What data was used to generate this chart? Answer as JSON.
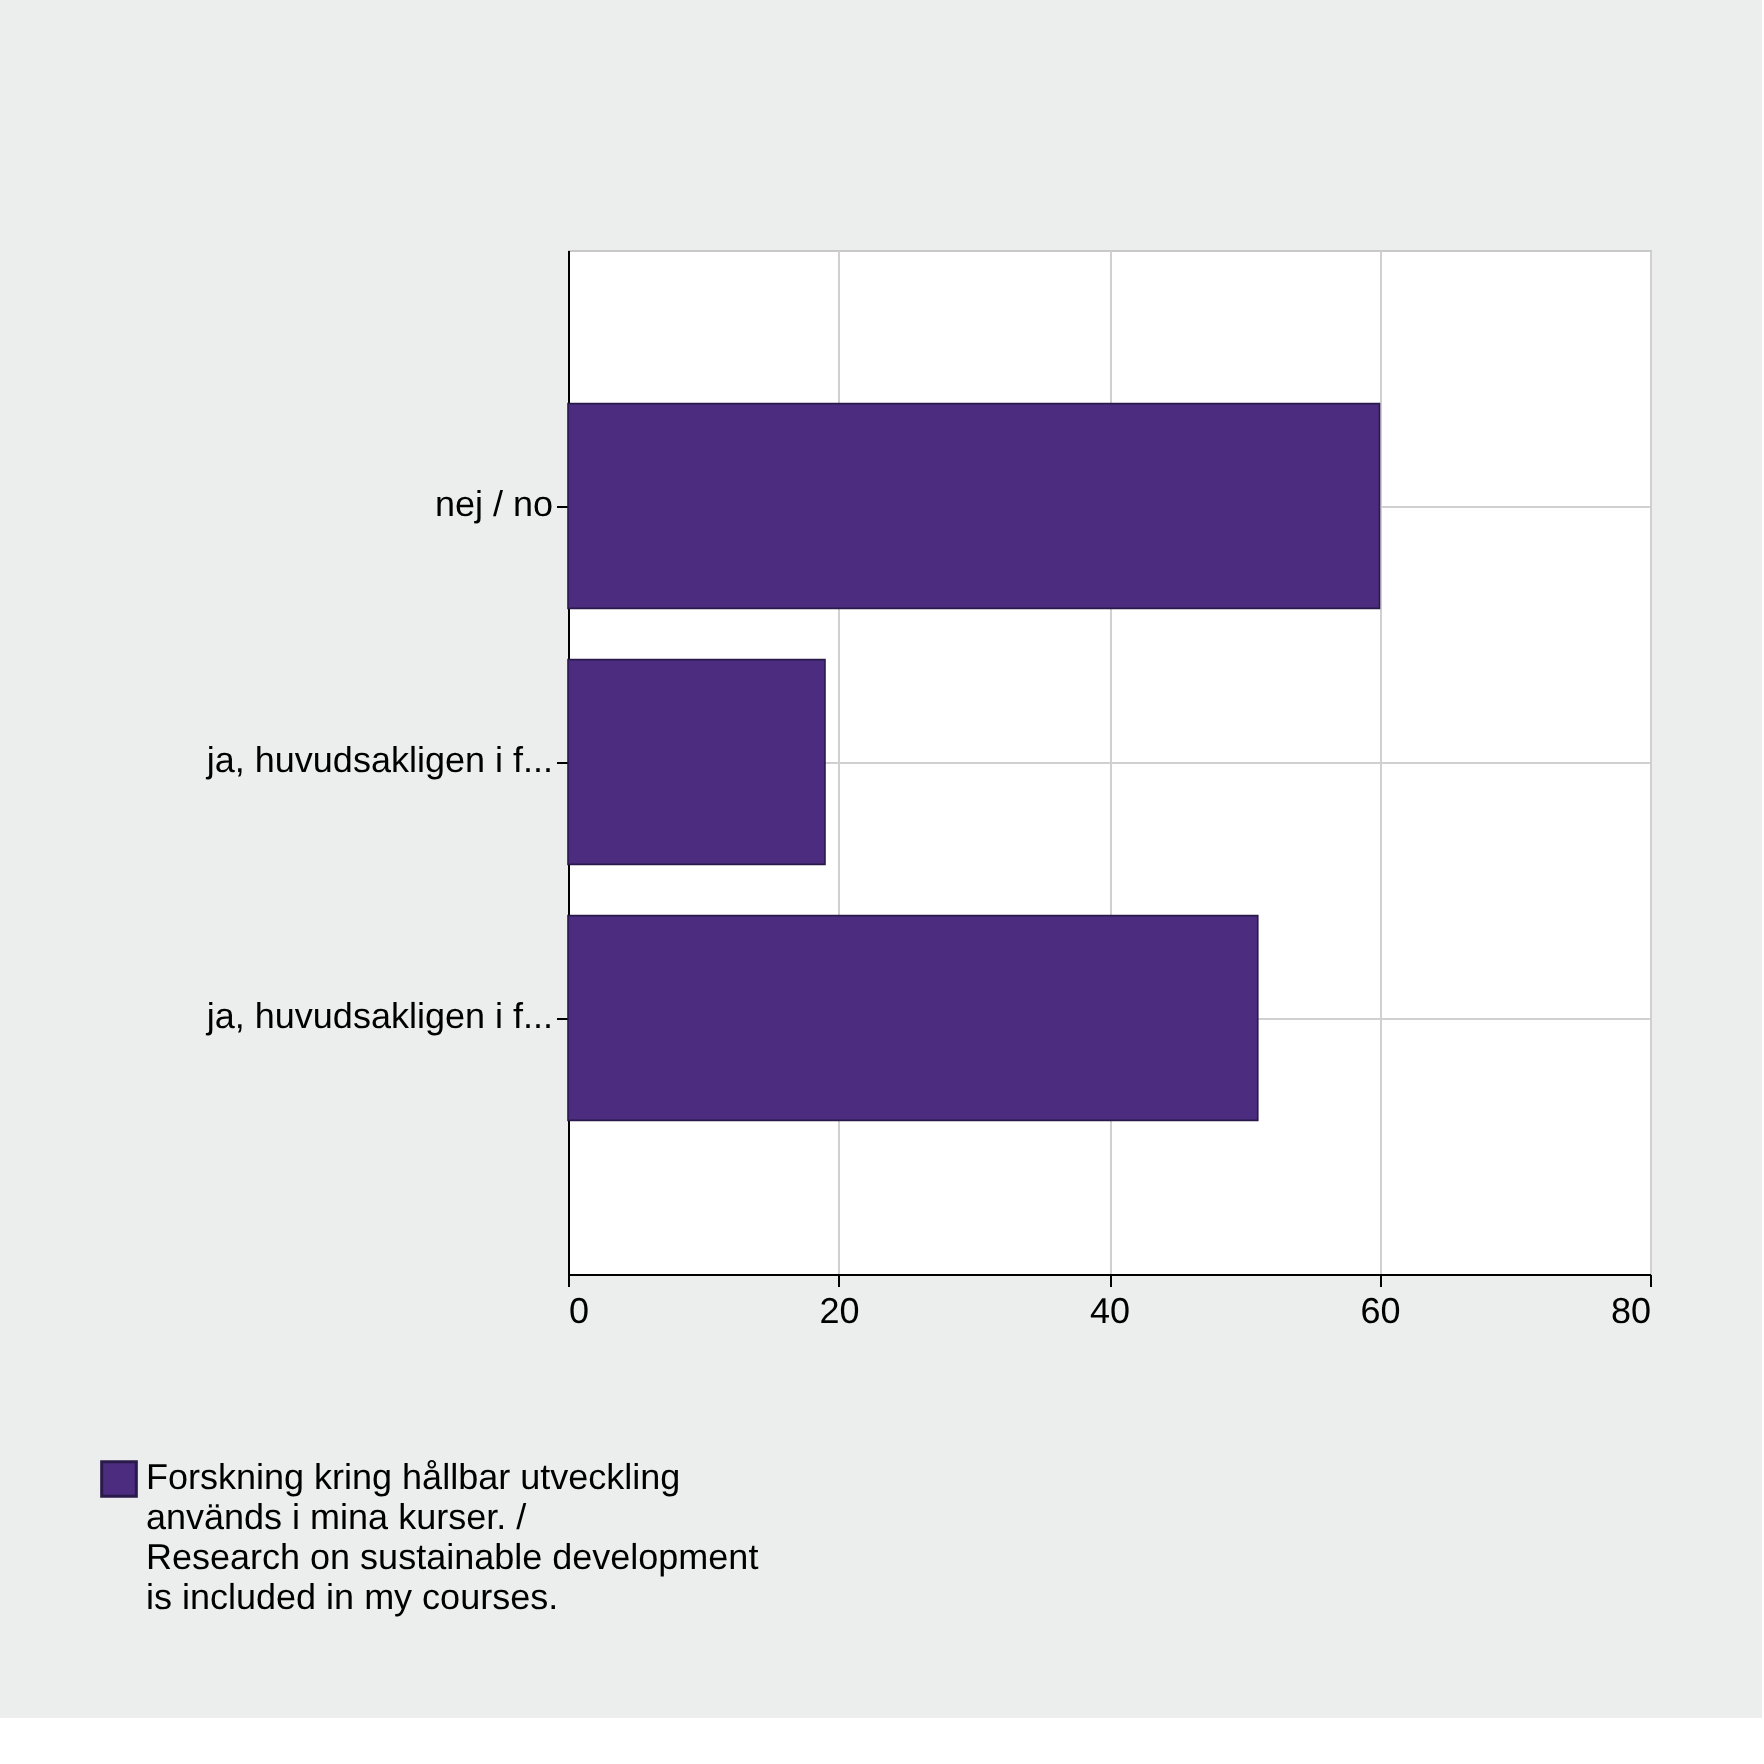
{
  "chart_data": {
    "type": "bar",
    "orientation": "horizontal",
    "categories": [
      "nej / no",
      "ja, huvudsakligen i f...",
      "ja, huvudsakligen i f..."
    ],
    "series": [
      {
        "name": "Forskning kring hållbar utveckling\nanvänds i mina kurser. /\nResearch on sustainable development\nis included in my courses.",
        "color": "#4b2c7f",
        "values": [
          60,
          19,
          51
        ]
      }
    ],
    "xlim": [
      0,
      80
    ],
    "xticks": [
      0,
      20,
      40,
      60,
      80
    ],
    "grid": true,
    "legend": "bottom left"
  }
}
